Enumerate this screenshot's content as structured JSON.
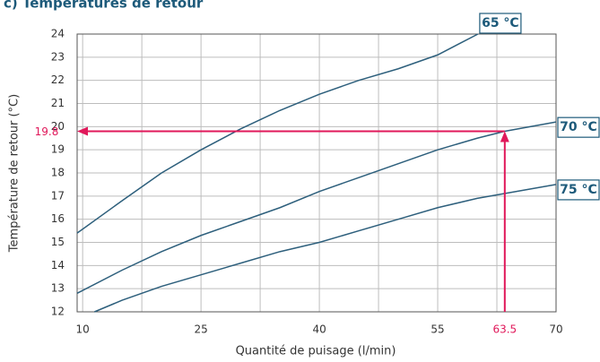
{
  "chart_data": {
    "type": "line",
    "title": "c) Températures de retour",
    "x_label": "Quantité de puisage (l/min)",
    "y_label": "Température de retour (°C)",
    "xlim": [
      9.3,
      70
    ],
    "ylim": [
      12,
      24
    ],
    "xticks": [
      10,
      25,
      40,
      55,
      70
    ],
    "xgrid": [
      10,
      17.5,
      25,
      32.5,
      40,
      47.5,
      55,
      62.5,
      70
    ],
    "yticks": [
      12,
      13,
      14,
      15,
      16,
      17,
      18,
      19,
      20,
      21,
      22,
      23,
      24
    ],
    "grid": true,
    "series": [
      {
        "name": "65 °C",
        "color": "#2d5f7c",
        "x": [
          9.3,
          15,
          20,
          25,
          30,
          35,
          40,
          45,
          50,
          55,
          60.1
        ],
        "values": [
          15.4,
          16.8,
          18.0,
          19.0,
          19.9,
          20.7,
          21.4,
          22.0,
          22.5,
          23.1,
          24
        ]
      },
      {
        "name": "70 °C",
        "color": "#2d5f7c",
        "x": [
          9.3,
          15,
          20,
          25,
          30,
          35,
          40,
          45,
          50,
          55,
          60,
          63.5,
          70
        ],
        "values": [
          12.8,
          13.8,
          14.6,
          15.3,
          15.9,
          16.5,
          17.2,
          17.8,
          18.4,
          19.0,
          19.5,
          19.8,
          20.2
        ]
      },
      {
        "name": "75 °C",
        "color": "#2d5f7c",
        "x": [
          11.5,
          15,
          20,
          25,
          30,
          35,
          40,
          45,
          50,
          55,
          60,
          65,
          70
        ],
        "values": [
          12,
          12.5,
          13.1,
          13.6,
          14.1,
          14.6,
          15.0,
          15.5,
          16.0,
          16.5,
          16.9,
          17.2,
          17.5
        ]
      }
    ],
    "marker": {
      "x": 63.5,
      "y": 19.8,
      "color": "#e0185a"
    }
  }
}
